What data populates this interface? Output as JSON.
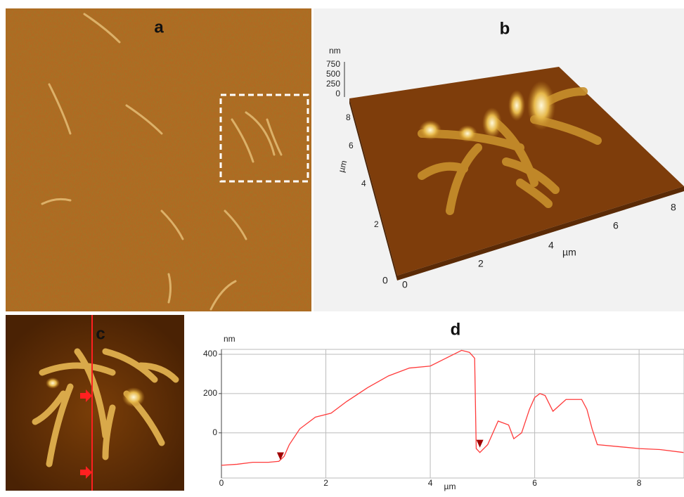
{
  "panels": {
    "a": {
      "label": "a"
    },
    "b": {
      "label": "b"
    },
    "c": {
      "label": "c"
    }
  },
  "panel_b": {
    "z_unit": "nm",
    "z_ticks": [
      "750",
      "500",
      "250",
      "0"
    ],
    "y_unit": "µm",
    "y_ticks": [
      "8",
      "6",
      "4",
      "2",
      "0"
    ],
    "x_unit": "µm",
    "x_ticks": [
      "0",
      "2",
      "4",
      "6",
      "8"
    ]
  },
  "chart_data": {
    "type": "line",
    "panel_label": "d",
    "xlabel": "µm",
    "ylabel": "nm",
    "color": "#ff3b3b",
    "grid": true,
    "x": [
      0,
      0.3,
      0.6,
      0.9,
      1.1,
      1.2,
      1.3,
      1.5,
      1.8,
      2.1,
      2.4,
      2.8,
      3.2,
      3.6,
      4.0,
      4.3,
      4.6,
      4.75,
      4.85,
      4.88,
      4.95,
      5.1,
      5.3,
      5.5,
      5.6,
      5.75,
      5.9,
      6.0,
      6.1,
      6.2,
      6.35,
      6.6,
      6.9,
      7.0,
      7.1,
      7.2,
      7.6,
      8.0,
      8.4,
      8.85
    ],
    "values": [
      -165,
      -160,
      -150,
      -150,
      -145,
      -120,
      -60,
      20,
      80,
      100,
      160,
      230,
      290,
      330,
      340,
      380,
      420,
      410,
      380,
      -80,
      -100,
      -60,
      60,
      40,
      -30,
      0,
      120,
      180,
      200,
      190,
      110,
      170,
      170,
      120,
      20,
      -60,
      -70,
      -80,
      -85,
      -100
    ],
    "markers": {
      "color": "#a00000",
      "x": [
        1.13,
        4.95
      ],
      "y": [
        -121,
        -57
      ]
    },
    "xlim": [
      0,
      8.86
    ],
    "ylim": [
      -230,
      425
    ],
    "xticks": [
      0,
      2,
      4,
      6,
      8
    ],
    "yticks": [
      0,
      200,
      400
    ]
  }
}
